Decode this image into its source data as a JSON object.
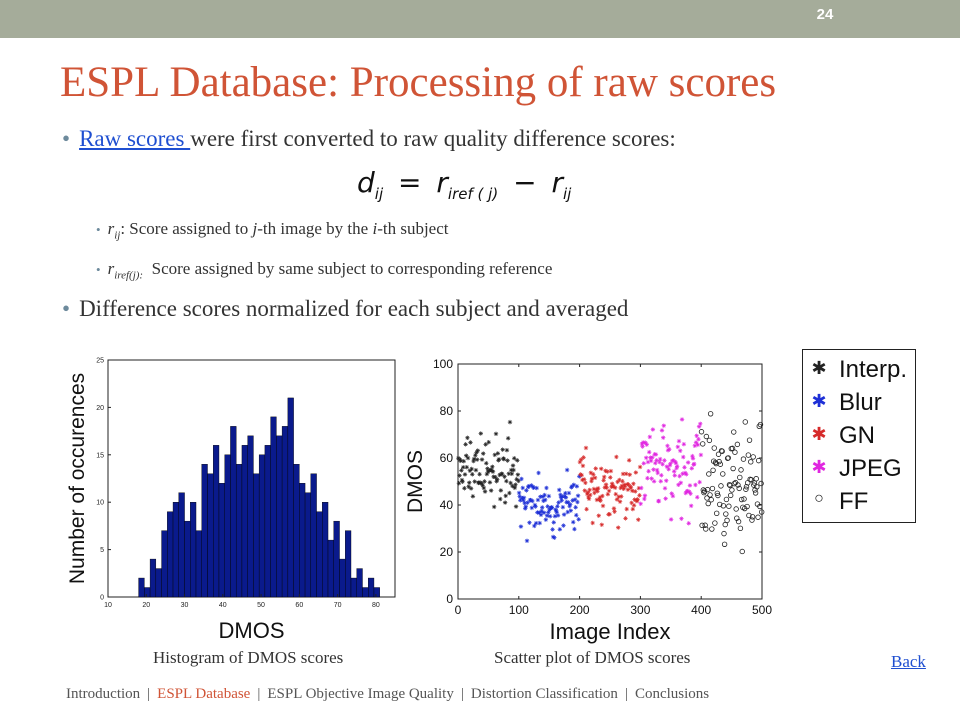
{
  "slide": {
    "number": "24",
    "title": "ESPL Database: Processing of raw scores",
    "bullet1_link": "Raw scores ",
    "bullet1_rest": "were first converted to raw quality difference scores:",
    "formula_lhs": "d",
    "formula_lhs_sub": "ij",
    "formula_eq": "=",
    "formula_r1": "r",
    "formula_r1_sub": "iref ( j)",
    "formula_minus": "−",
    "formula_r2": "r",
    "formula_r2_sub": "ij",
    "sub1_var": "r",
    "sub1_var_sub": "ij",
    "sub1_text_a": ": Score assigned to ",
    "sub1_j": "j",
    "sub1_text_b": "-th image by the ",
    "sub1_i": "i",
    "sub1_text_c": "-th subject",
    "sub2_var": "r",
    "sub2_var_sub": "iref(j):",
    "sub2_text": "Score assigned by same subject to corresponding reference",
    "bullet2": "Difference scores normalized for each subject and averaged",
    "caption_hist": "Histogram of DMOS scores",
    "caption_scatter": "Scatter plot of DMOS scores",
    "back_link": "Back",
    "bullet_char": "•"
  },
  "nav": {
    "items": [
      {
        "label": "Introduction",
        "active": false
      },
      {
        "label": "ESPL Database",
        "active": true
      },
      {
        "label": "ESPL Objective Image Quality",
        "active": false
      },
      {
        "label": "Distortion Classification",
        "active": false
      },
      {
        "label": "Conclusions",
        "active": false
      }
    ],
    "separator": "|"
  },
  "colors": {
    "title": "#d05436",
    "topbar": "#a5ac9a",
    "link": "#1f4fd1",
    "hist_bar": "#0a1a8c",
    "interp": "#222222",
    "blur": "#1d2fd6",
    "gn": "#d62a2a",
    "jpeg": "#e026e0",
    "ff": "#222222"
  },
  "chart_data": [
    {
      "type": "bar",
      "xlabel": "DMOS",
      "ylabel": "Number of occurences",
      "xlim": [
        10,
        85
      ],
      "ylim": [
        0,
        25
      ],
      "xticks": [
        10,
        20,
        30,
        40,
        50,
        60,
        70,
        80
      ],
      "yticks": [
        0,
        5,
        10,
        15,
        20,
        25
      ],
      "grid": false,
      "bin_start": 18,
      "bin_width": 1.5,
      "values": [
        2,
        1,
        4,
        3,
        7,
        9,
        10,
        11,
        8,
        10,
        7,
        14,
        13,
        16,
        12,
        15,
        18,
        14,
        16,
        17,
        13,
        15,
        16,
        19,
        17,
        18,
        21,
        14,
        12,
        11,
        13,
        9,
        10,
        6,
        8,
        4,
        7,
        2,
        3,
        1,
        2,
        1
      ]
    },
    {
      "type": "scatter",
      "xlabel": "Image Index",
      "ylabel": "DMOS",
      "xlim": [
        0,
        500
      ],
      "ylim": [
        0,
        100
      ],
      "xticks": [
        0,
        100,
        200,
        300,
        400,
        500
      ],
      "yticks": [
        0,
        20,
        40,
        60,
        80,
        100
      ],
      "grid": false,
      "legend_position": "outside-right",
      "series": [
        {
          "name": "Interp.",
          "marker": "*",
          "x_range": [
            0,
            100
          ],
          "mean": 55,
          "spread": 10,
          "count": 100,
          "seed": 11
        },
        {
          "name": "Blur",
          "marker": "*",
          "x_range": [
            100,
            200
          ],
          "mean": 40,
          "spread": 9,
          "count": 100,
          "seed": 23
        },
        {
          "name": "GN",
          "marker": "*",
          "x_range": [
            200,
            300
          ],
          "mean": 47,
          "spread": 10,
          "count": 100,
          "seed": 37
        },
        {
          "name": "JPEG",
          "marker": "*",
          "x_range": [
            300,
            400
          ],
          "mean": 55,
          "spread": 13,
          "count": 100,
          "seed": 51
        },
        {
          "name": "FF",
          "marker": "o",
          "x_range": [
            400,
            500
          ],
          "mean": 50,
          "spread": 16,
          "count": 100,
          "seed": 67
        }
      ]
    }
  ]
}
